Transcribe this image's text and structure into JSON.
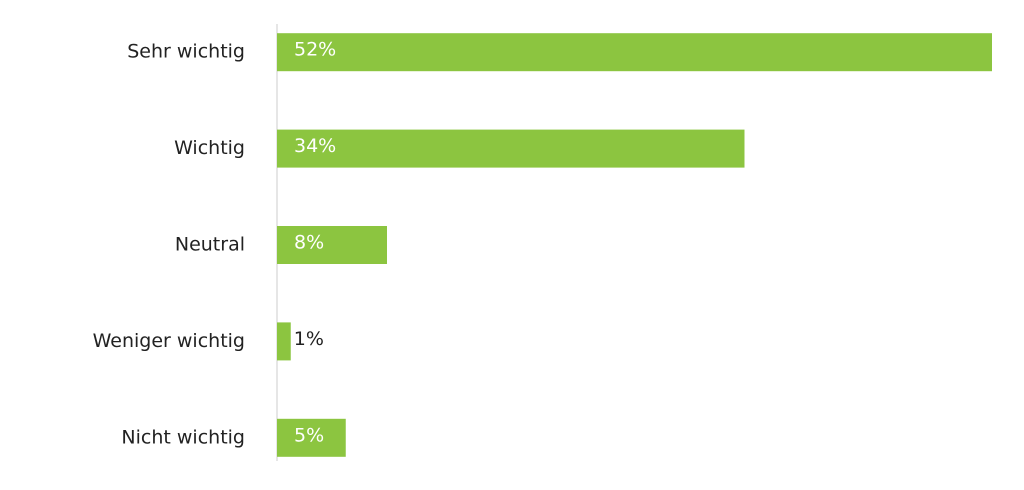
{
  "chart_data": {
    "type": "bar",
    "orientation": "horizontal",
    "categories": [
      "Sehr wichtig",
      "Wichtig",
      "Neutral",
      "Weniger wichtig",
      "Nicht wichtig"
    ],
    "values": [
      52,
      34,
      8,
      1,
      5
    ],
    "value_labels": [
      "52%",
      "34%",
      "8%",
      "1%",
      "5%"
    ],
    "color": "#8cc540"
  }
}
